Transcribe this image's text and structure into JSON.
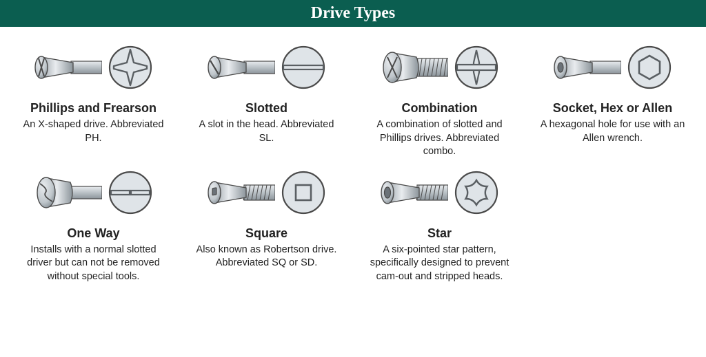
{
  "header": {
    "title": "Drive Types"
  },
  "colors": {
    "header_bg": "#0b5e50",
    "header_text": "#ffffff",
    "stroke": "#4a4a4a",
    "metal_light": "#e9ecef",
    "metal_mid": "#bfc6cb",
    "metal_dark": "#8c959b",
    "icon_fill": "#dfe4e8",
    "icon_stroke": "#5a5f63"
  },
  "items": [
    {
      "icon": "phillips",
      "title": "Phillips and Frearson",
      "desc": "An X-shaped drive. Abbreviated PH."
    },
    {
      "icon": "slotted",
      "title": "Slotted",
      "desc": "A slot in the head. Abbreviated SL."
    },
    {
      "icon": "combination",
      "title": "Combination",
      "desc": "A combination of slotted and Phillips drives. Abbreviated combo."
    },
    {
      "icon": "hex",
      "title": "Socket, Hex or Allen",
      "desc": "A hexagonal hole for use with an Allen wrench."
    },
    {
      "icon": "oneway",
      "title": "One Way",
      "desc": "Installs with a normal slotted driver but can not be removed without special tools."
    },
    {
      "icon": "square",
      "title": "Square",
      "desc": "Also known as Robertson drive. Abbreviated SQ or SD."
    },
    {
      "icon": "star",
      "title": "Star",
      "desc": "A six-pointed star pattern, specifically designed to prevent cam-out and stripped heads."
    }
  ]
}
